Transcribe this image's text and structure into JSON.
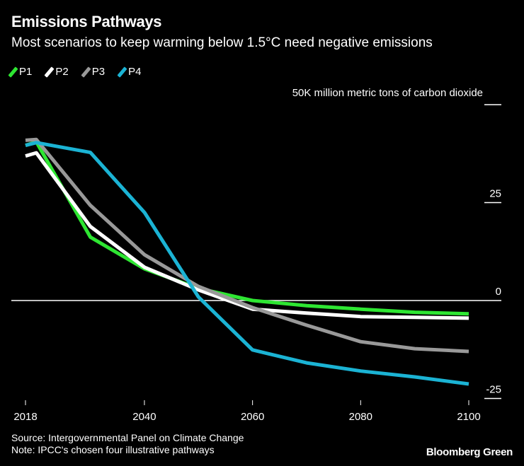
{
  "title": "Emissions Pathways",
  "subtitle": "Most scenarios to keep warming below 1.5°C need negative emissions",
  "source": "Source: Intergovernmental Panel on Climate Change",
  "note": "Note: IPCC's chosen four illustrative pathways",
  "brand": "Bloomberg Green",
  "chart_data": {
    "type": "line",
    "title": "Emissions Pathways",
    "ylabel": "50K million metric tons of carbon dioxide",
    "ylim": [
      -25,
      50
    ],
    "xlim": [
      2018,
      2100
    ],
    "y_ticks": [
      50,
      25,
      0,
      -25
    ],
    "y_tick_labels": [
      "",
      "25",
      "0",
      "-25"
    ],
    "x_ticks": [
      2018,
      2040,
      2060,
      2080,
      2100
    ],
    "x_tick_labels": [
      "2018",
      "2040",
      "2060",
      "2080",
      "2100"
    ],
    "legend_position": "top-left",
    "x": [
      2018,
      2020,
      2030,
      2040,
      2050,
      2060,
      2070,
      2080,
      2090,
      2100
    ],
    "series": [
      {
        "name": "P1",
        "color": "#2ee632",
        "values": [
          39.6,
          40.5,
          16.2,
          8.1,
          3.1,
          0,
          -1.3,
          -2.2,
          -3,
          -3.4
        ]
      },
      {
        "name": "P2",
        "color": "#ffffff",
        "values": [
          36.9,
          37.7,
          18.9,
          8.5,
          2.7,
          -2.2,
          -3.2,
          -4.1,
          -4.3,
          -4.5
        ]
      },
      {
        "name": "P3",
        "color": "#999999",
        "values": [
          40.9,
          41.1,
          24.3,
          11.7,
          3.6,
          -1.8,
          -6.3,
          -10.5,
          -12.3,
          -13
        ]
      },
      {
        "name": "P4",
        "color": "#1bb3d4",
        "values": [
          39.6,
          40.3,
          37.8,
          22.5,
          0.9,
          -12.6,
          -15.9,
          -18,
          -19.5,
          -21.3
        ]
      }
    ]
  }
}
